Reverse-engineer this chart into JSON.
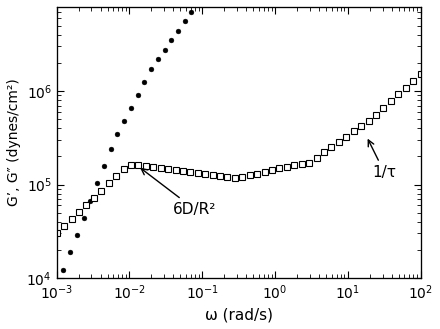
{
  "xlabel": "ω (rad/s)",
  "ylabel": "G’, G″ (dynes/cm²)",
  "xlim_log": [
    -3,
    2
  ],
  "ylim_log": [
    4,
    6.9
  ],
  "annotation1_text": "6D/R²",
  "annotation2_text": "1/τ",
  "circle_color": "black",
  "square_facecolor": "white",
  "background_color": "white"
}
